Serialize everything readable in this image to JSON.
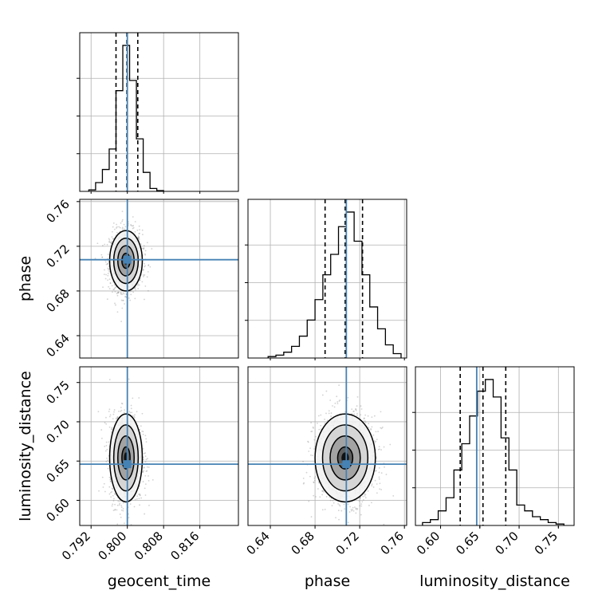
{
  "chart_data": {
    "type": "corner",
    "parameters": [
      "geocent_time",
      "phase",
      "luminosity_distance"
    ],
    "truths": {
      "geocent_time": 0.8,
      "phase": 0.708,
      "luminosity_distance": 0.646
    },
    "colors": {
      "truth": "#4682b4",
      "histogram": "#000000",
      "grid": "#b0b0b0",
      "samples": "#7f7f7f"
    },
    "grid": true,
    "axes": {
      "geocent_time": {
        "label": "geocent_time",
        "range": [
          0.7895,
          0.8245
        ],
        "ticks": [
          0.792,
          0.8,
          0.808,
          0.816
        ],
        "tick_labels": [
          "0.792",
          "0.800",
          "0.808",
          "0.816"
        ]
      },
      "phase": {
        "label": "phase",
        "range": [
          0.62,
          0.762
        ],
        "ticks": [
          0.64,
          0.68,
          0.72,
          0.76
        ],
        "tick_labels": [
          "0.64",
          "0.68",
          "0.72",
          "0.76"
        ]
      },
      "luminosity_distance": {
        "label": "luminosity_distance",
        "range": [
          0.568,
          0.77
        ],
        "ticks": [
          0.6,
          0.65,
          0.7,
          0.75
        ],
        "tick_labels": [
          "0.60",
          "0.65",
          "0.70",
          "0.75"
        ]
      }
    },
    "histograms": {
      "geocent_time": {
        "bins": [
          0.7915,
          0.793,
          0.7945,
          0.796,
          0.7975,
          0.799,
          0.8005,
          0.802,
          0.8035,
          0.805,
          0.8065,
          0.808
        ],
        "counts": [
          0.01,
          0.06,
          0.15,
          0.29,
          0.69,
          1.0,
          0.76,
          0.36,
          0.13,
          0.02,
          0.005
        ],
        "quantiles": [
          0.7975,
          0.7999,
          0.8023
        ]
      },
      "phase": {
        "bins": [
          0.638,
          0.645,
          0.652,
          0.659,
          0.666,
          0.673,
          0.68,
          0.687,
          0.694,
          0.701,
          0.708,
          0.715,
          0.722,
          0.729,
          0.736,
          0.743,
          0.75,
          0.757
        ],
        "counts": [
          0.01,
          0.02,
          0.04,
          0.08,
          0.15,
          0.26,
          0.4,
          0.57,
          0.71,
          0.9,
          1.0,
          0.8,
          0.57,
          0.35,
          0.2,
          0.09,
          0.03
        ],
        "quantiles": [
          0.689,
          0.707,
          0.7225
        ]
      },
      "luminosity_distance": {
        "bins": [
          0.577,
          0.587,
          0.597,
          0.607,
          0.617,
          0.627,
          0.637,
          0.647,
          0.657,
          0.667,
          0.677,
          0.687,
          0.697,
          0.707,
          0.717,
          0.727,
          0.737,
          0.747,
          0.757
        ],
        "counts": [
          0.02,
          0.04,
          0.1,
          0.19,
          0.38,
          0.56,
          0.75,
          0.92,
          1.0,
          0.88,
          0.6,
          0.38,
          0.14,
          0.1,
          0.06,
          0.04,
          0.02,
          0.01
        ],
        "quantiles": [
          0.625,
          0.654,
          0.683
        ]
      }
    },
    "density_2d": {
      "geocent_time_vs_phase": {
        "center": [
          0.7997,
          0.707
        ],
        "sigma": [
          0.0018,
          0.0135
        ]
      },
      "geocent_time_vs_luminosity_distance": {
        "center": [
          0.7997,
          0.654
        ],
        "sigma": [
          0.0018,
          0.028
        ]
      },
      "phase_vs_luminosity_distance": {
        "center": [
          0.707,
          0.654
        ],
        "sigma": [
          0.0135,
          0.028
        ]
      }
    },
    "contour_levels_sigma": [
      0.5,
      1.0,
      1.5,
      2.0
    ]
  }
}
